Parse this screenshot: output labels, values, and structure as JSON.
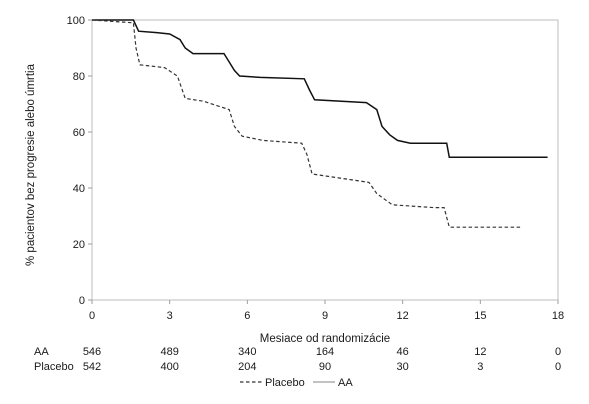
{
  "chart_data": {
    "type": "line",
    "xlabel": "Mesiace od randomizácie",
    "ylabel": "% pacientov bez progresie alebo úmrtia",
    "xlim": [
      0,
      18
    ],
    "ylim": [
      0,
      100
    ],
    "x_ticks": [
      0,
      3,
      6,
      9,
      12,
      15,
      18
    ],
    "y_ticks": [
      0,
      20,
      40,
      60,
      80,
      100
    ],
    "grid": false,
    "legend_position": "bottom",
    "series": [
      {
        "name": "AA",
        "style": "solid",
        "color": "#111111",
        "points": [
          [
            0,
            100
          ],
          [
            1.6,
            100
          ],
          [
            1.7,
            98
          ],
          [
            1.8,
            96
          ],
          [
            2.5,
            95.5
          ],
          [
            3.0,
            95
          ],
          [
            3.4,
            93
          ],
          [
            3.6,
            90
          ],
          [
            3.9,
            88
          ],
          [
            5.1,
            88
          ],
          [
            5.3,
            85
          ],
          [
            5.5,
            82
          ],
          [
            5.7,
            80
          ],
          [
            6.5,
            79.5
          ],
          [
            8.2,
            79
          ],
          [
            8.4,
            75
          ],
          [
            8.6,
            71.5
          ],
          [
            10.6,
            70.5
          ],
          [
            11.0,
            68
          ],
          [
            11.2,
            62
          ],
          [
            11.5,
            59
          ],
          [
            11.8,
            57
          ],
          [
            12.3,
            56
          ],
          [
            13.7,
            56
          ],
          [
            13.8,
            51
          ],
          [
            17.6,
            51
          ]
        ]
      },
      {
        "name": "Placebo",
        "style": "dashed",
        "color": "#333333",
        "points": [
          [
            0,
            100
          ],
          [
            1.6,
            99
          ],
          [
            1.7,
            90
          ],
          [
            1.85,
            84
          ],
          [
            2.8,
            83
          ],
          [
            3.3,
            80
          ],
          [
            3.6,
            72
          ],
          [
            4.3,
            71
          ],
          [
            5.3,
            68
          ],
          [
            5.5,
            62
          ],
          [
            5.8,
            58.5
          ],
          [
            6.6,
            57
          ],
          [
            8.1,
            56
          ],
          [
            8.3,
            52
          ],
          [
            8.5,
            45
          ],
          [
            10.7,
            42
          ],
          [
            11.0,
            38
          ],
          [
            11.3,
            36
          ],
          [
            11.6,
            34
          ],
          [
            13.2,
            33
          ],
          [
            13.6,
            33
          ],
          [
            13.8,
            26
          ],
          [
            16.6,
            26
          ]
        ]
      }
    ],
    "risk_table": {
      "x": [
        0,
        3,
        6,
        9,
        12,
        15,
        18
      ],
      "rows": [
        {
          "label": "AA",
          "values": [
            546,
            489,
            340,
            164,
            46,
            12,
            0
          ]
        },
        {
          "label": "Placebo",
          "values": [
            542,
            400,
            204,
            90,
            30,
            3,
            0
          ]
        }
      ]
    },
    "legend": [
      {
        "label": "Placebo",
        "style": "dashed"
      },
      {
        "label": "AA",
        "style": "solid"
      }
    ]
  }
}
